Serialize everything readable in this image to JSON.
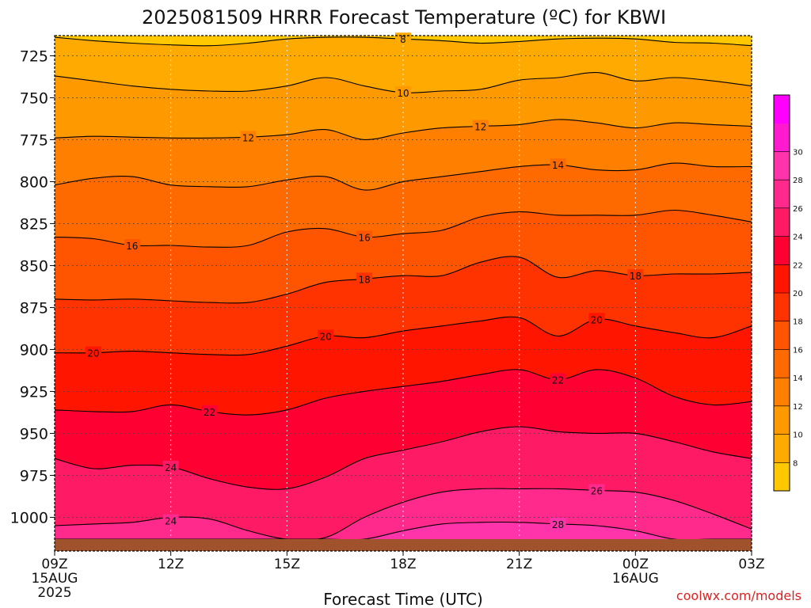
{
  "chart_data": {
    "type": "heatmap",
    "title": "2025081509 HRRR Forecast Temperature (ºC) for KBWI",
    "xlabel": "Forecast Time (UTC)",
    "ylabel": "",
    "x_ticks": [
      {
        "hour": 0,
        "label": "09Z",
        "sub1": "15AUG",
        "sub2": "2025"
      },
      {
        "hour": 3,
        "label": "12Z",
        "sub1": "",
        "sub2": ""
      },
      {
        "hour": 6,
        "label": "15Z",
        "sub1": "",
        "sub2": ""
      },
      {
        "hour": 9,
        "label": "18Z",
        "sub1": "",
        "sub2": ""
      },
      {
        "hour": 12,
        "label": "21Z",
        "sub1": "",
        "sub2": ""
      },
      {
        "hour": 15,
        "label": "00Z",
        "sub1": "16AUG",
        "sub2": ""
      },
      {
        "hour": 18,
        "label": "03Z",
        "sub1": "",
        "sub2": ""
      }
    ],
    "xlim": [
      0,
      18
    ],
    "y_ticks": [
      725,
      750,
      775,
      800,
      825,
      850,
      875,
      900,
      925,
      950,
      975,
      1000
    ],
    "ylim": [
      713,
      1013
    ],
    "surface_pressure": 1010,
    "grid": true,
    "hours": [
      0,
      1,
      2,
      3,
      4,
      5,
      6,
      7,
      8,
      9,
      10,
      11,
      12,
      13,
      14,
      15,
      16,
      17,
      18
    ],
    "colorbar": {
      "levels": [
        6,
        8,
        10,
        12,
        14,
        16,
        18,
        20,
        22,
        24,
        26,
        28,
        30,
        32
      ],
      "labels": [
        "8",
        "10",
        "12",
        "14",
        "16",
        "18",
        "20",
        "22",
        "24",
        "26",
        "28",
        "30"
      ],
      "colors": [
        "#ffc800",
        "#ffaa00",
        "#ff9900",
        "#ff8000",
        "#ff6a00",
        "#ff5500",
        "#ff3300",
        "#ff1500",
        "#ff0033",
        "#ff1a66",
        "#ff2a8c",
        "#ff33aa",
        "#ff1ad0",
        "#ff00ff"
      ]
    },
    "isotherms": [
      {
        "value": 8,
        "pressure": [
          714,
          716,
          717.5,
          718.5,
          719,
          717.5,
          715,
          714,
          714,
          715,
          716,
          717.5,
          716.5,
          715,
          714.5,
          715,
          717,
          717.5,
          719
        ],
        "labels": [
          9
        ]
      },
      {
        "value": 10,
        "pressure": [
          737,
          740,
          743,
          745,
          746,
          746,
          743,
          738,
          743,
          747,
          746,
          745,
          739.5,
          738,
          735,
          740,
          738,
          740,
          743
        ],
        "labels": [
          9
        ]
      },
      {
        "value": 12,
        "pressure": [
          774,
          773,
          773.5,
          774,
          774,
          773.5,
          772,
          769,
          775,
          771,
          768,
          767,
          766,
          763,
          765,
          768,
          765,
          766,
          767
        ],
        "labels": [
          5,
          11
        ]
      },
      {
        "value": 14,
        "pressure": [
          802,
          798,
          797,
          802,
          803,
          803,
          799,
          797,
          805,
          800,
          797,
          794,
          791,
          790,
          793,
          793,
          789,
          791,
          791
        ],
        "labels": [
          13
        ]
      },
      {
        "value": 16,
        "pressure": [
          833,
          834,
          838,
          838,
          839,
          838,
          830,
          828,
          833,
          831,
          829,
          821,
          818,
          820,
          820,
          820,
          817,
          820,
          824
        ],
        "labels": [
          2,
          8
        ]
      },
      {
        "value": 18,
        "pressure": [
          870,
          870.5,
          870,
          871,
          872,
          872,
          867,
          860,
          858,
          856,
          856,
          848,
          845,
          857,
          853,
          856,
          855,
          855,
          854
        ],
        "labels": [
          8,
          15
        ]
      },
      {
        "value": 20,
        "pressure": [
          902,
          902,
          901,
          902,
          903,
          903,
          898,
          892,
          893,
          889,
          886,
          883,
          881,
          892,
          882,
          886,
          890,
          893,
          886
        ],
        "labels": [
          1,
          7,
          14
        ]
      },
      {
        "value": 22,
        "pressure": [
          936,
          937,
          937,
          933,
          937,
          939,
          936,
          929,
          925,
          922,
          919,
          915,
          912,
          918,
          912,
          917,
          928,
          933,
          931
        ],
        "labels": [
          4,
          13
        ]
      },
      {
        "value": 24,
        "pressure": [
          965,
          971,
          969,
          970,
          977,
          982,
          983,
          976,
          965,
          960,
          955,
          949,
          946,
          949,
          950,
          950,
          955,
          961,
          965
        ],
        "labels": [
          3
        ]
      },
      {
        "value": 26,
        "pressure": [
          1005,
          1004,
          1003,
          1000,
          1001,
          1008,
          1013,
          1012,
          1000,
          991,
          985,
          983,
          983,
          983,
          984,
          985,
          990,
          998,
          1007
        ],
        "labels": [
          14
        ]
      },
      {
        "value": 28,
        "pressure": [
          1013,
          1013,
          1013,
          1013,
          1013,
          1013,
          1013,
          1013,
          1013,
          1008,
          1004,
          1003,
          1003,
          1004,
          1005,
          1008,
          1013,
          1013,
          1013
        ],
        "labels": [
          13
        ]
      }
    ],
    "extra_labels": [
      {
        "text": "24",
        "hour": 3,
        "pressure": 1002
      }
    ]
  },
  "credit": "coolwx.com/models"
}
